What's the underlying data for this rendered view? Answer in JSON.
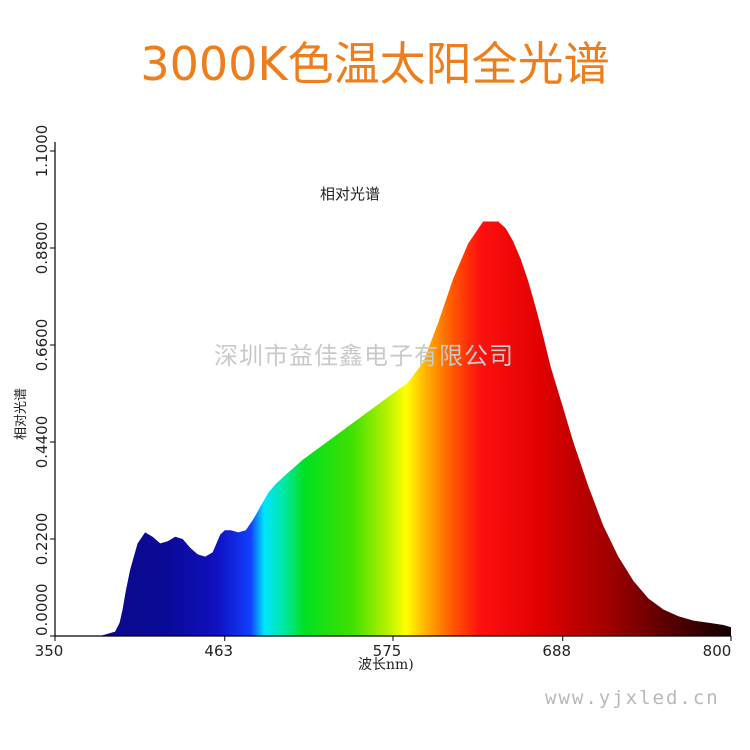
{
  "page": {
    "title": "3000K色温太阳全光谱",
    "watermark_company": "深圳市益佳鑫电子有限公司",
    "watermark_url": "www.yjxled.cn"
  },
  "colors": {
    "title": "#ee7d1c",
    "axis": "#000000",
    "watermark": "#c9c9c9"
  },
  "chart_data": {
    "type": "area",
    "title": "相对光谱",
    "xlabel": "波长nm)",
    "ylabel": "相对光谱",
    "xlim": [
      350,
      800
    ],
    "ylim": [
      0,
      1.1
    ],
    "x_ticks": [
      "350",
      "463",
      "575",
      "688",
      "800"
    ],
    "y_ticks": [
      "0.0000",
      "0.2200",
      "0.4400",
      "0.6600",
      "0.8800",
      "1.1000"
    ],
    "grid": false,
    "fill": "wavelength-colored spectrum",
    "x": [
      350,
      380,
      390,
      393,
      395,
      397,
      400,
      405,
      410,
      415,
      420,
      425,
      430,
      435,
      440,
      445,
      450,
      455,
      460,
      463,
      467,
      472,
      477,
      482,
      487,
      492,
      497,
      505,
      515,
      525,
      535,
      545,
      555,
      565,
      575,
      585,
      595,
      605,
      615,
      625,
      635,
      645,
      650,
      655,
      660,
      665,
      670,
      675,
      680,
      688,
      695,
      705,
      715,
      725,
      735,
      745,
      755,
      765,
      775,
      785,
      795,
      800
    ],
    "y": [
      0,
      0,
      0.01,
      0.03,
      0.06,
      0.1,
      0.15,
      0.21,
      0.235,
      0.225,
      0.21,
      0.215,
      0.225,
      0.22,
      0.2,
      0.185,
      0.18,
      0.19,
      0.23,
      0.24,
      0.24,
      0.235,
      0.24,
      0.265,
      0.295,
      0.325,
      0.345,
      0.37,
      0.4,
      0.425,
      0.45,
      0.475,
      0.5,
      0.525,
      0.55,
      0.575,
      0.62,
      0.71,
      0.81,
      0.89,
      0.94,
      0.94,
      0.925,
      0.895,
      0.855,
      0.805,
      0.745,
      0.68,
      0.61,
      0.52,
      0.44,
      0.34,
      0.25,
      0.18,
      0.125,
      0.085,
      0.06,
      0.045,
      0.035,
      0.03,
      0.025,
      0.02
    ]
  }
}
